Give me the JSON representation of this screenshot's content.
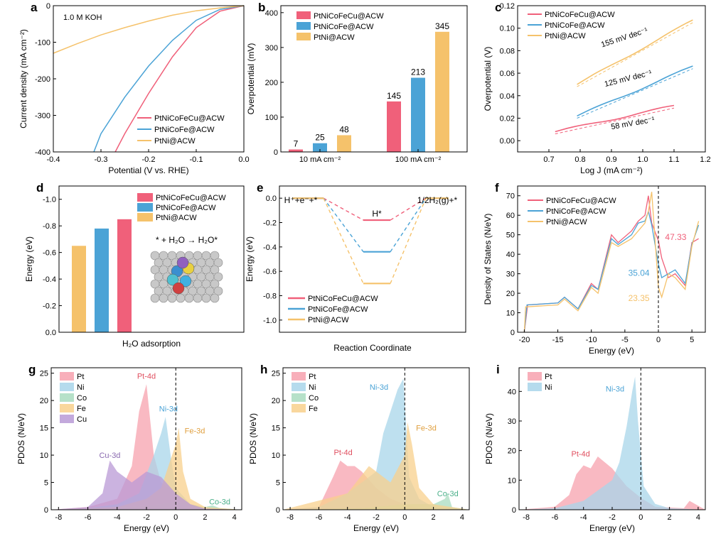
{
  "colors": {
    "pink": "#F0607A",
    "blue": "#4BA3D6",
    "orange": "#F5C26B",
    "pink_light": "#F7A1AE",
    "blue_light": "#A8D5EA",
    "green_light": "#A9DCC0",
    "orange_light": "#F8D08C",
    "purple_light": "#B99AD6"
  },
  "chart_data": [
    {
      "panel": "a",
      "type": "line",
      "note": "1.0 M KOH",
      "xlabel": "Potential (V vs. RHE)",
      "ylabel": "Current density (mA cm⁻²)",
      "xlim": [
        -0.4,
        0.0
      ],
      "ylim": [
        -400,
        0
      ],
      "xticks": [
        "-0.4",
        "-0.3",
        "-0.2",
        "-0.1",
        "0.0"
      ],
      "yticks": [
        "0",
        "-100",
        "-200",
        "-300",
        "-400"
      ],
      "legend": [
        "PtNiCoFeCu@ACW",
        "PtNiCoFe@ACW",
        "PtNi@ACW"
      ],
      "series": [
        {
          "name": "PtNiCoFeCu@ACW",
          "x": [
            0,
            -0.05,
            -0.1,
            -0.15,
            -0.2,
            -0.25,
            -0.27
          ],
          "y": [
            0,
            -15,
            -60,
            -140,
            -240,
            -350,
            -400
          ]
        },
        {
          "name": "PtNiCoFe@ACW",
          "x": [
            0,
            -0.05,
            -0.1,
            -0.15,
            -0.2,
            -0.25,
            -0.3,
            -0.315
          ],
          "y": [
            0,
            -10,
            -40,
            -95,
            -165,
            -250,
            -350,
            -400
          ]
        },
        {
          "name": "PtNi@ACW",
          "x": [
            0,
            -0.05,
            -0.1,
            -0.15,
            -0.2,
            -0.25,
            -0.3,
            -0.35,
            -0.4
          ],
          "y": [
            0,
            -6,
            -14,
            -26,
            -42,
            -60,
            -80,
            -104,
            -130
          ]
        }
      ]
    },
    {
      "panel": "b",
      "type": "bar",
      "xlabel": "",
      "ylabel": "Overpotential (mV)",
      "ylim": [
        0,
        420
      ],
      "yticks": [
        "0",
        "100",
        "200",
        "300",
        "400"
      ],
      "categories": [
        "10 mA cm⁻²",
        "100 mA cm⁻²"
      ],
      "legend": [
        "PtNiCoFeCu@ACW",
        "PtNiCoFe@ACW",
        "PtNi@ACW"
      ],
      "series": [
        {
          "name": "PtNiCoFeCu@ACW",
          "values": [
            7,
            145
          ],
          "labels": [
            "7",
            "145"
          ]
        },
        {
          "name": "PtNiCoFe@ACW",
          "values": [
            25,
            213
          ],
          "labels": [
            "25",
            "213"
          ]
        },
        {
          "name": "PtNi@ACW",
          "values": [
            48,
            345
          ],
          "labels": [
            "48",
            "345"
          ]
        }
      ]
    },
    {
      "panel": "c",
      "type": "line",
      "xlabel": "Log J (mA cm⁻²)",
      "ylabel": "Overpotential (V)",
      "xlim": [
        0.6,
        1.2
      ],
      "ylim": [
        -0.01,
        0.12
      ],
      "xticks": [
        "0.7",
        "0.8",
        "0.9",
        "1.0",
        "1.1",
        "1.2"
      ],
      "yticks": [
        "0.00",
        "0.02",
        "0.04",
        "0.06",
        "0.08",
        "0.10",
        "0.12"
      ],
      "legend": [
        "PtNiCoFeCu@ACW",
        "PtNiCoFe@ACW",
        "PtNi@ACW"
      ],
      "slope_labels": [
        "155 mV dec⁻¹",
        "125 mV dec⁻¹",
        "58 mV dec⁻¹"
      ],
      "series": [
        {
          "name": "PtNiCoFeCu@ACW",
          "x": [
            0.72,
            1.1
          ],
          "y": [
            0.008,
            0.031
          ]
        },
        {
          "name": "PtNiCoFe@ACW",
          "x": [
            0.79,
            1.16
          ],
          "y": [
            0.022,
            0.066
          ]
        },
        {
          "name": "PtNi@ACW",
          "x": [
            0.79,
            1.16
          ],
          "y": [
            0.05,
            0.107
          ]
        }
      ]
    },
    {
      "panel": "d",
      "type": "bar",
      "xlabel": "H₂O adsorption",
      "ylabel": "Energy (eV)",
      "ylim": [
        0,
        -1.1
      ],
      "yticks": [
        "0.0",
        "-0.2",
        "-0.4",
        "-0.6",
        "-0.8",
        "-1.0"
      ],
      "legend": [
        "PtNiCoFeCu@ACW",
        "PtNiCoFe@ACW",
        "PtNi@ACW"
      ],
      "annotation": "* + H₂O → H₂O*",
      "series": [
        {
          "name": "PtNi@ACW",
          "value": -0.65
        },
        {
          "name": "PtNiCoFe@ACW",
          "value": -0.78
        },
        {
          "name": "PtNiCoFeCu@ACW",
          "value": -0.85
        }
      ]
    },
    {
      "panel": "e",
      "type": "line",
      "xlabel": "Reaction Coordinate",
      "ylabel": "Energy (eV)",
      "ylim": [
        -1.1,
        0.1
      ],
      "yticks": [
        "0.0",
        "-0.2",
        "-0.4",
        "-0.6",
        "-0.8",
        "-1.0"
      ],
      "state_labels": [
        "H⁺+e⁻+*",
        "H*",
        "1/2H₂(g)+*"
      ],
      "legend": [
        "PtNiCoFeCu@ACW",
        "PtNiCoFe@ACW",
        "PtNi@ACW"
      ],
      "series": [
        {
          "name": "PtNiCoFeCu@ACW",
          "values": [
            0,
            -0.18,
            0
          ]
        },
        {
          "name": "PtNiCoFe@ACW",
          "values": [
            0,
            -0.44,
            0
          ]
        },
        {
          "name": "PtNi@ACW",
          "values": [
            0,
            -0.7,
            0
          ]
        }
      ]
    },
    {
      "panel": "f",
      "type": "line",
      "xlabel": "Energy (eV)",
      "ylabel": "Density of States (N/eV)",
      "xlim": [
        -21,
        7
      ],
      "ylim": [
        0,
        75
      ],
      "xticks": [
        "-20",
        "-15",
        "-10",
        "-5",
        "0",
        "5"
      ],
      "yticks": [
        "0",
        "10",
        "20",
        "30",
        "40",
        "50",
        "60",
        "70"
      ],
      "legend": [
        "PtNiCoFeCu@ACW",
        "PtNiCoFe@ACW",
        "PtNi@ACW"
      ],
      "annotations": [
        "47.33",
        "35.04",
        "23.35"
      ],
      "series": [
        {
          "name": "PtNiCoFeCu@ACW",
          "x": [
            -20,
            -19.5,
            -15,
            -14,
            -12,
            -10,
            -9,
            -7,
            -6,
            -4,
            -3,
            -2,
            -1.5,
            -1,
            0,
            0.5,
            1.5,
            2.5,
            4,
            5,
            6
          ],
          "y": [
            0,
            14,
            15,
            18,
            12,
            25,
            22,
            50,
            46,
            52,
            57,
            60,
            70,
            56,
            47,
            38,
            28,
            30,
            24,
            46,
            48
          ]
        },
        {
          "name": "PtNiCoFe@ACW",
          "x": [
            -20,
            -19.6,
            -15,
            -14,
            -12,
            -10,
            -9,
            -7,
            -6,
            -4,
            -3,
            -2,
            -1.5,
            -1,
            0,
            0.5,
            1.5,
            2.5,
            4,
            5,
            6
          ],
          "y": [
            0,
            14,
            15,
            18,
            12,
            24,
            22,
            48,
            45,
            50,
            56,
            57,
            62,
            55,
            35,
            28,
            30,
            32,
            25,
            45,
            55
          ]
        },
        {
          "name": "PtNi@ACW",
          "x": [
            -20,
            -19.8,
            -15,
            -14,
            -12,
            -10,
            -9,
            -7,
            -6,
            -4,
            -3,
            -2,
            -1.5,
            -1,
            0,
            0.5,
            1.5,
            2.5,
            4,
            5,
            6
          ],
          "y": [
            0,
            13,
            14,
            17,
            11,
            23,
            20,
            46,
            44,
            48,
            52,
            56,
            62,
            72,
            23,
            18,
            30,
            28,
            22,
            44,
            57
          ]
        }
      ]
    },
    {
      "panel": "g",
      "type": "area",
      "xlabel": "Energy (eV)",
      "ylabel": "PDOS (N/eV)",
      "xlim": [
        -8.5,
        4.5
      ],
      "ylim": [
        0,
        26
      ],
      "xticks": [
        "-8",
        "-6",
        "-4",
        "-2",
        "0",
        "2",
        "4"
      ],
      "yticks": [
        "0",
        "5",
        "10",
        "15",
        "20",
        "25"
      ],
      "legend": [
        "Pt",
        "Ni",
        "Co",
        "Fe",
        "Cu"
      ],
      "peak_labels": [
        "Pt-4d",
        "Ni-3d",
        "Fe-3d",
        "Cu-3d",
        "Co-3d"
      ],
      "series": [
        {
          "name": "Pt",
          "x": [
            -8.5,
            -6,
            -4,
            -3,
            -2.5,
            -2,
            -1.5,
            -1,
            0,
            1,
            2,
            4.5
          ],
          "y": [
            0,
            0.5,
            2,
            8,
            18,
            23,
            10,
            5,
            3,
            1,
            0.3,
            0
          ]
        },
        {
          "name": "Ni",
          "x": [
            -8.5,
            -6,
            -4,
            -2.5,
            -1.5,
            -1,
            -0.7,
            -0.3,
            0,
            1,
            2,
            4.5
          ],
          "y": [
            0,
            0.3,
            1,
            3,
            10,
            14,
            17,
            9,
            4,
            1,
            0.2,
            0
          ]
        },
        {
          "name": "Co",
          "x": [
            -8.5,
            -4,
            -1,
            0,
            1,
            2,
            2.5,
            3,
            4.5
          ],
          "y": [
            0,
            0.3,
            1,
            1.5,
            1,
            0.5,
            0.8,
            0.3,
            0
          ]
        },
        {
          "name": "Fe",
          "x": [
            -8.5,
            -4,
            -2,
            -1,
            0,
            0.2,
            0.5,
            1,
            2,
            4.5
          ],
          "y": [
            0,
            0.5,
            2,
            4,
            12,
            15,
            7,
            2,
            0.5,
            0
          ]
        },
        {
          "name": "Cu",
          "x": [
            -8.5,
            -6,
            -5,
            -4.5,
            -4,
            -3,
            -2,
            -1,
            0,
            1,
            2,
            4.5
          ],
          "y": [
            0,
            0.5,
            3,
            9,
            7,
            5,
            7,
            6,
            3,
            1,
            0.2,
            0
          ]
        }
      ]
    },
    {
      "panel": "h",
      "type": "area",
      "xlabel": "Energy (eV)",
      "ylabel": "PDOS (N/eV)",
      "xlim": [
        -8.5,
        4.5
      ],
      "ylim": [
        0,
        26
      ],
      "xticks": [
        "-8",
        "-6",
        "-4",
        "-2",
        "0",
        "2",
        "4"
      ],
      "yticks": [
        "0",
        "5",
        "10",
        "15",
        "20",
        "25"
      ],
      "legend": [
        "Pt",
        "Ni",
        "Co",
        "Fe"
      ],
      "peak_labels": [
        "Ni-3d",
        "Fe-3d",
        "Pt-4d",
        "Co-3d"
      ],
      "series": [
        {
          "name": "Pt",
          "x": [
            -8.5,
            -6,
            -5,
            -4.5,
            -4,
            -3.5,
            -3,
            -2,
            -1,
            0,
            1,
            4.5
          ],
          "y": [
            0,
            0.5,
            6,
            9,
            8,
            8,
            7,
            4,
            2,
            1,
            0.3,
            0
          ]
        },
        {
          "name": "Ni",
          "x": [
            -8.5,
            -6,
            -4,
            -2,
            -1.5,
            -1,
            -0.5,
            -0.1,
            0.3,
            1,
            2,
            4.5
          ],
          "y": [
            0,
            0.5,
            3,
            7,
            14,
            18,
            22,
            24,
            6,
            2,
            0.5,
            0
          ]
        },
        {
          "name": "Co",
          "x": [
            -8.5,
            -3,
            0,
            2,
            2.8,
            3,
            3.3,
            4.5
          ],
          "y": [
            0,
            0.3,
            1,
            1,
            2,
            3,
            0.5,
            0
          ]
        },
        {
          "name": "Fe",
          "x": [
            -8.5,
            -4,
            -2.5,
            -1,
            0,
            0.2,
            0.5,
            1,
            2,
            4.5
          ],
          "y": [
            0,
            3,
            8,
            5,
            10,
            16,
            12,
            4,
            1,
            0
          ]
        }
      ]
    },
    {
      "panel": "i",
      "type": "area",
      "xlabel": "Energy (eV)",
      "ylabel": "PDOS (N/eV)",
      "xlim": [
        -8.5,
        4.5
      ],
      "ylim": [
        0,
        48
      ],
      "xticks": [
        "-8",
        "-6",
        "-4",
        "-2",
        "0",
        "2",
        "4"
      ],
      "yticks": [
        "0",
        "10",
        "20",
        "30",
        "40"
      ],
      "legend": [
        "Pt",
        "Ni"
      ],
      "peak_labels": [
        "Ni-3d",
        "Pt-4d"
      ],
      "series": [
        {
          "name": "Pt",
          "x": [
            -8.5,
            -6,
            -5,
            -4.5,
            -4,
            -3.5,
            -3,
            -2,
            -1,
            0,
            1,
            3,
            3.4,
            4.5
          ],
          "y": [
            0,
            1,
            5,
            12,
            15,
            14,
            18,
            14,
            8,
            4,
            1,
            0.5,
            3,
            0
          ]
        },
        {
          "name": "Ni",
          "x": [
            -8.5,
            -6,
            -4,
            -2,
            -1.5,
            -1,
            -0.6,
            -0.4,
            -0.2,
            0.2,
            1,
            2,
            4.5
          ],
          "y": [
            0,
            0.5,
            3,
            10,
            16,
            28,
            40,
            45,
            30,
            8,
            2,
            0.5,
            0
          ]
        }
      ]
    }
  ]
}
